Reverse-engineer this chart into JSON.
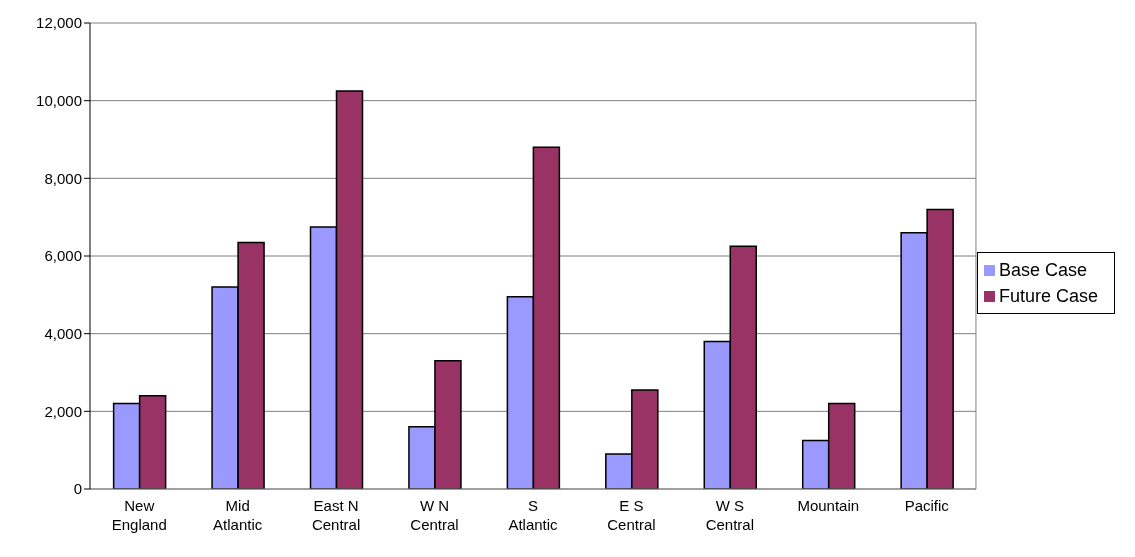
{
  "chart_data": {
    "type": "bar",
    "categories": [
      "New England",
      "Mid Atlantic",
      "East N Central",
      "W N Central",
      "S Atlantic",
      "E S Central",
      "W S Central",
      "Mountain",
      "Pacific"
    ],
    "series": [
      {
        "name": "Base Case",
        "color": "#9999ff",
        "values": [
          2200,
          5200,
          6750,
          1600,
          4950,
          900,
          3800,
          1250,
          6600
        ]
      },
      {
        "name": "Future Case",
        "color": "#993366",
        "values": [
          2400,
          6350,
          10250,
          3300,
          8800,
          2550,
          6250,
          2200,
          7200
        ]
      }
    ],
    "ylim": [
      0,
      12000
    ],
    "yticks": [
      0,
      {
        "value": 2000,
        "label": "2,000"
      },
      {
        "value": 4000,
        "label": "4,000"
      },
      {
        "value": 6000,
        "label": "6,000"
      },
      {
        "value": 8000,
        "label": "8,000"
      },
      {
        "value": 10000,
        "label": "10,000"
      },
      {
        "value": 12000,
        "label": "12,000"
      }
    ],
    "grid": "y",
    "legend": "right"
  }
}
